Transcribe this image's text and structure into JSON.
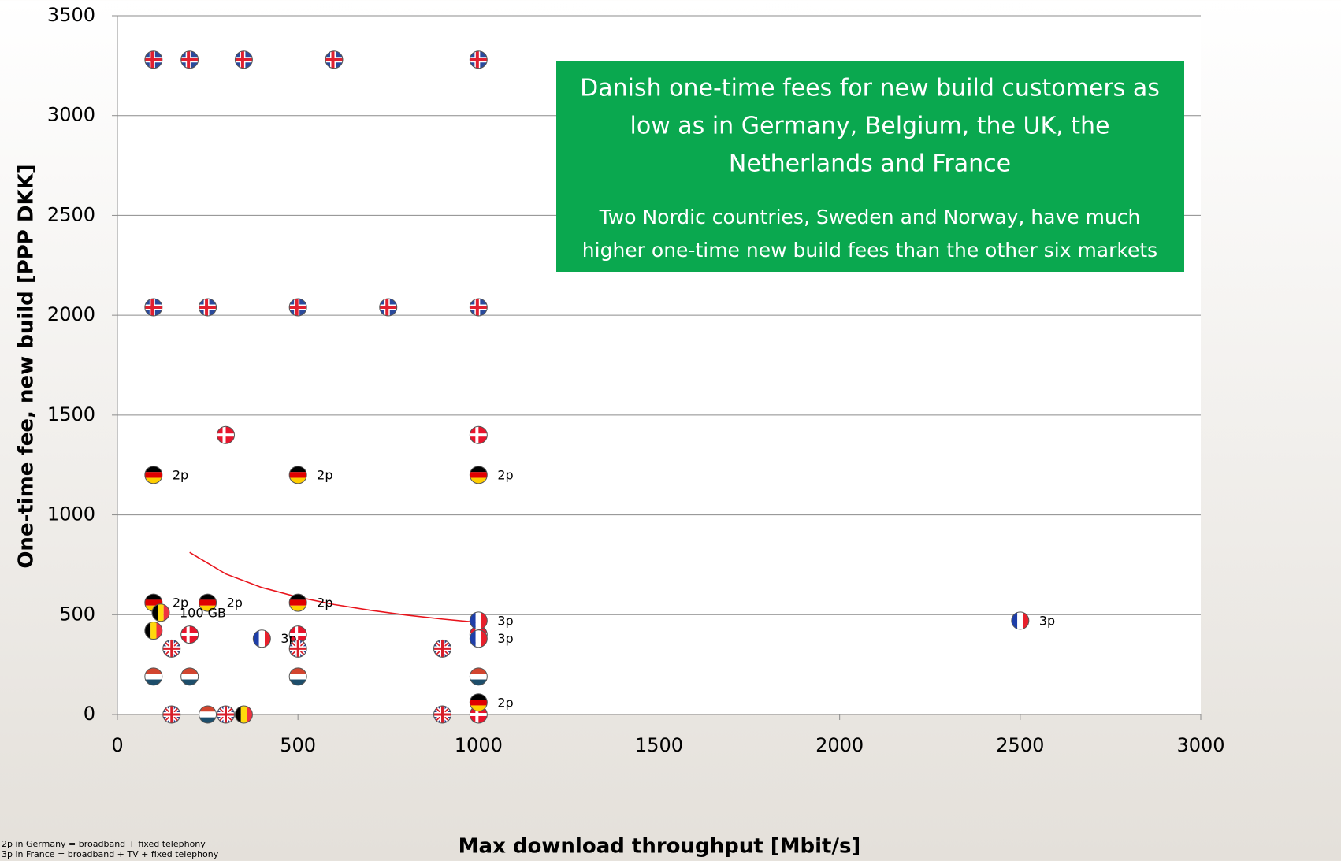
{
  "chart_data": {
    "type": "scatter",
    "ylabel": "One-time fee, new build [PPP DKK]",
    "xlabel": "Max download throughput [Mbit/s]",
    "xlim": [
      0,
      3000
    ],
    "xticks": [
      0,
      500,
      1000,
      1500,
      2000,
      2500,
      3000
    ],
    "ylim": [
      0,
      3500
    ],
    "yticks": [
      0,
      500,
      1000,
      1500,
      2000,
      2500,
      3000,
      3500
    ],
    "grid": true,
    "annotation": {
      "lines": [
        "Danish one-time fees for new build customers as",
        "low as in Germany, Belgium, the UK, the",
        "Netherlands and France"
      ],
      "sub_lines": [
        "Two Nordic countries, Sweden and Norway, have much",
        "higher one-time new build fees than the other six markets"
      ],
      "color": "#0aa84f"
    },
    "footnotes": [
      "2p in Germany = broadband + fixed telephony",
      "3p in France = broadband + TV + fixed telephony"
    ],
    "trend": {
      "color": "#e8141c",
      "x": [
        200,
        300,
        400,
        500,
        600,
        700,
        800,
        900,
        1000
      ],
      "values": [
        812,
        704,
        636,
        588,
        551,
        522,
        498,
        478,
        461
      ]
    },
    "series": [
      {
        "flag": "norway",
        "x": [
          100,
          200,
          350,
          600,
          1000
        ],
        "values": [
          3280,
          3280,
          3280,
          3280,
          3280
        ]
      },
      {
        "flag": "norway",
        "x": [
          100,
          250,
          500,
          750,
          1000
        ],
        "values": [
          2040,
          2040,
          2040,
          2040,
          2040
        ]
      },
      {
        "flag": "denmark",
        "x": [
          300,
          1000,
          200,
          500,
          1000,
          1000
        ],
        "values": [
          1400,
          1400,
          400,
          400,
          400,
          0
        ]
      },
      {
        "flag": "germany",
        "x": [
          100,
          500,
          1000,
          100,
          250,
          500,
          1000
        ],
        "values": [
          1200,
          1200,
          1200,
          560,
          560,
          560,
          60
        ],
        "labels": [
          "2p",
          "2p",
          "2p",
          "2p",
          "2p",
          "2p",
          "2p"
        ]
      },
      {
        "flag": "belgium",
        "x": [
          120,
          100,
          350
        ],
        "values": [
          510,
          420,
          0
        ],
        "labels": [
          "100 GB",
          null,
          null
        ]
      },
      {
        "flag": "france",
        "x": [
          400,
          1000,
          1000,
          2500
        ],
        "values": [
          380,
          470,
          380,
          470
        ],
        "labels": [
          "3p",
          "3p",
          "3p",
          "3p"
        ]
      },
      {
        "flag": "uk",
        "x": [
          150,
          500,
          900,
          150,
          300,
          900
        ],
        "values": [
          330,
          330,
          330,
          0,
          0,
          0
        ]
      },
      {
        "flag": "netherlands",
        "x": [
          100,
          200,
          500,
          1000,
          250
        ],
        "values": [
          190,
          190,
          190,
          190,
          0
        ]
      }
    ]
  }
}
